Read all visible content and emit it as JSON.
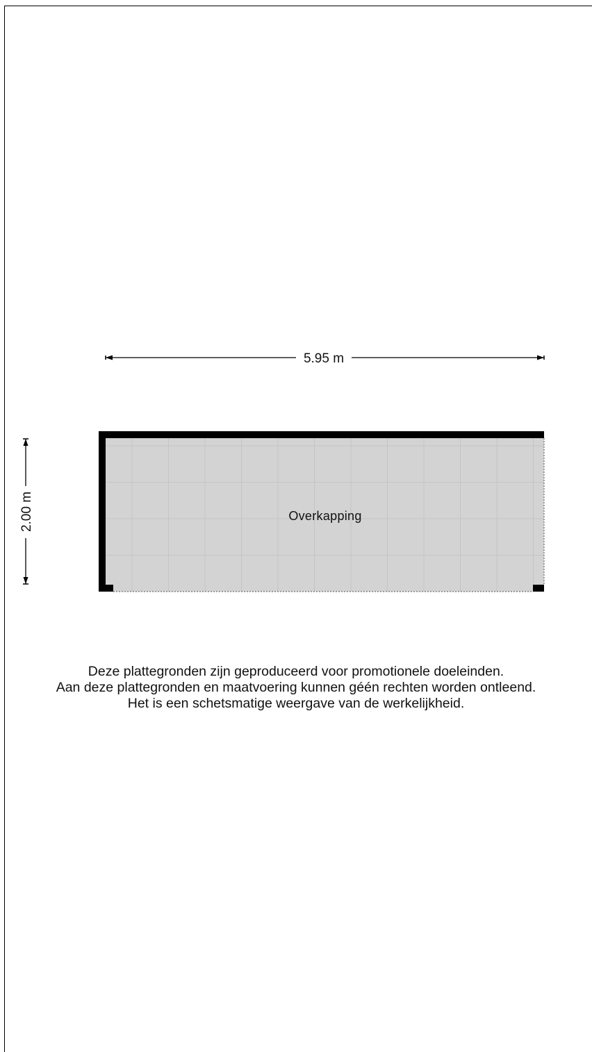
{
  "floorplan": {
    "width_label": "5.95 m",
    "height_label": "2.00 m",
    "room_name": "Overkapping",
    "tile_color": "#d3d3d3",
    "tile_line_color": "#c4c4c4",
    "wall_color": "#000000"
  },
  "disclaimer": {
    "line1": "Deze plattegronden zijn geproduceerd voor promotionele doeleinden.",
    "line2": "Aan deze plattegronden en maatvoering kunnen géén rechten worden ontleend.",
    "line3": "Het is een schetsmatige weergave van de werkelijkheid."
  }
}
